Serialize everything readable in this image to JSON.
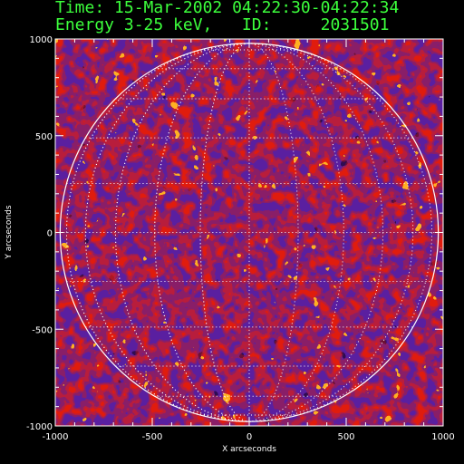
{
  "header": {
    "time_label": "Time:",
    "time_value": "15-Mar-2002 04:22:30-04:22:34",
    "energy_label": "Energy 3-25 keV,",
    "id_label": "ID:",
    "id_value": "2031501"
  },
  "axes": {
    "xlabel": "X arcseconds",
    "ylabel": "Y arcseconds",
    "xlim": [
      -1000,
      1000
    ],
    "ylim": [
      -1000,
      1000
    ],
    "xticks": [
      "-1000",
      "-500",
      "0",
      "500",
      "1000"
    ],
    "yticks": [
      "1000",
      "500",
      "0",
      "-500",
      "-1000"
    ]
  },
  "colors": {
    "header_text": "#3cff3c",
    "axis": "#ffffff",
    "limb": "#ffffff",
    "background": "#000000"
  }
}
